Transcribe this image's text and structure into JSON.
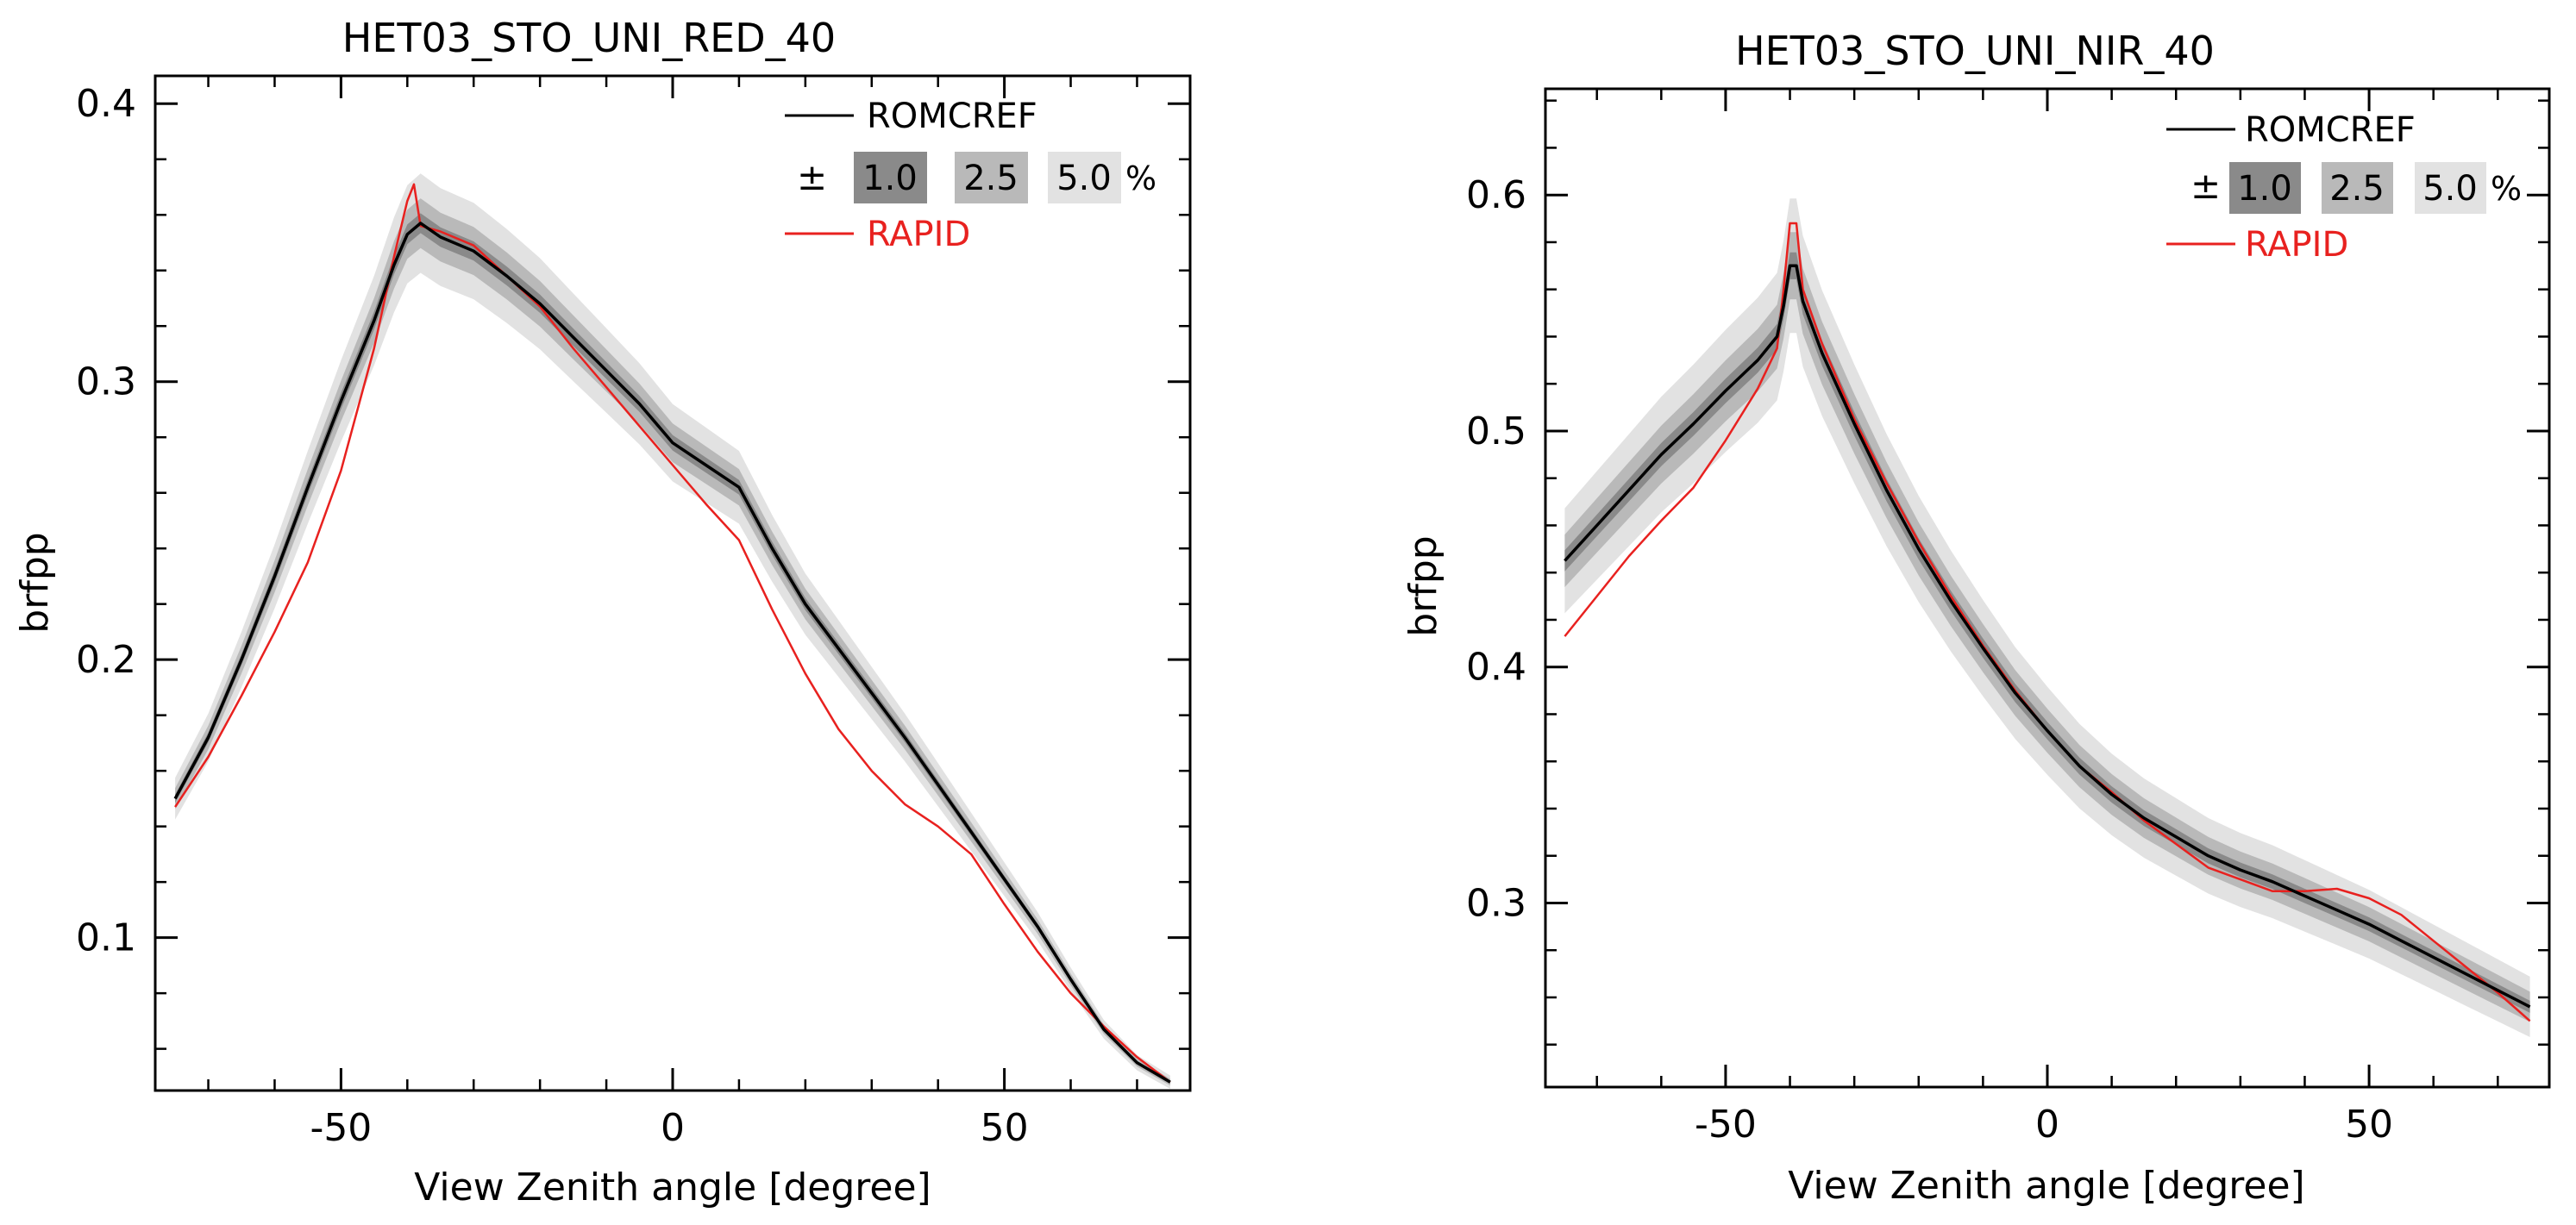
{
  "chart_data": [
    {
      "type": "line",
      "title": "HET03_STO_UNI_RED_40",
      "xlabel": "View Zenith angle [degree]",
      "ylabel": "brfpp",
      "xlim": [
        -78,
        78
      ],
      "ylim": [
        0.045,
        0.41
      ],
      "x_ticks": [
        -50,
        0,
        50
      ],
      "x_tick_labels": [
        "-50",
        "0",
        "50"
      ],
      "y_ticks": [
        0.1,
        0.2,
        0.3,
        0.4
      ],
      "y_tick_labels": [
        "0.1",
        "0.2",
        "0.3",
        "0.4"
      ],
      "grid": false,
      "legend_position": "top-right",
      "legend": {
        "ref_label": "ROMCREF",
        "pm_symbol": "±",
        "band_labels": [
          "1.0",
          "2.5",
          "5.0"
        ],
        "percent_symbol": "%",
        "model_label": "RAPID"
      },
      "series": [
        {
          "name": "ROMCREF",
          "color": "#000000",
          "x": [
            -75,
            -70,
            -65,
            -60,
            -55,
            -50,
            -45,
            -42,
            -40,
            -38,
            -35,
            -30,
            -25,
            -20,
            -15,
            -10,
            -5,
            0,
            5,
            10,
            15,
            20,
            25,
            30,
            35,
            40,
            45,
            50,
            55,
            60,
            65,
            70,
            75
          ],
          "values": [
            0.15,
            0.172,
            0.2,
            0.23,
            0.262,
            0.293,
            0.322,
            0.342,
            0.353,
            0.357,
            0.352,
            0.347,
            0.338,
            0.328,
            0.316,
            0.304,
            0.292,
            0.278,
            0.27,
            0.262,
            0.24,
            0.22,
            0.204,
            0.188,
            0.172,
            0.155,
            0.138,
            0.121,
            0.104,
            0.085,
            0.067,
            0.055,
            0.048
          ]
        },
        {
          "name": "RAPID",
          "color": "#e8211f",
          "x": [
            -75,
            -70,
            -65,
            -60,
            -55,
            -50,
            -45,
            -42,
            -40,
            -39,
            -38,
            -35,
            -30,
            -25,
            -20,
            -15,
            -10,
            -5,
            0,
            5,
            10,
            15,
            20,
            25,
            30,
            35,
            40,
            45,
            50,
            55,
            60,
            65,
            70,
            75
          ],
          "values": [
            0.147,
            0.165,
            0.187,
            0.21,
            0.235,
            0.268,
            0.312,
            0.345,
            0.365,
            0.371,
            0.356,
            0.354,
            0.349,
            0.338,
            0.327,
            0.312,
            0.298,
            0.284,
            0.27,
            0.256,
            0.243,
            0.218,
            0.195,
            0.175,
            0.16,
            0.148,
            0.14,
            0.13,
            0.112,
            0.095,
            0.08,
            0.068,
            0.057,
            0.048
          ]
        }
      ],
      "uncertainty_bands_percent": [
        1.0,
        2.5,
        5.0
      ],
      "band_colors": [
        "#8a8a8a",
        "#b9b9b9",
        "#e2e2e2"
      ]
    },
    {
      "type": "line",
      "title": "HET03_STO_UNI_NIR_40",
      "xlabel": "View Zenith angle [degree]",
      "ylabel": "brfpp",
      "xlim": [
        -78,
        78
      ],
      "ylim": [
        0.222,
        0.645
      ],
      "x_ticks": [
        -50,
        0,
        50
      ],
      "x_tick_labels": [
        "-50",
        "0",
        "50"
      ],
      "y_ticks": [
        0.3,
        0.4,
        0.5,
        0.6
      ],
      "y_tick_labels": [
        "0.3",
        "0.4",
        "0.5",
        "0.6"
      ],
      "grid": false,
      "legend_position": "top-right",
      "legend": {
        "ref_label": "ROMCREF",
        "pm_symbol": "±",
        "band_labels": [
          "1.0",
          "2.5",
          "5.0"
        ],
        "percent_symbol": "%",
        "model_label": "RAPID"
      },
      "series": [
        {
          "name": "ROMCREF",
          "color": "#000000",
          "x": [
            -75,
            -70,
            -65,
            -60,
            -55,
            -50,
            -45,
            -42,
            -41,
            -40,
            -39,
            -38,
            -35,
            -30,
            -25,
            -20,
            -15,
            -10,
            -5,
            0,
            5,
            10,
            15,
            20,
            25,
            30,
            35,
            40,
            45,
            50,
            55,
            60,
            65,
            70,
            75
          ],
          "values": [
            0.445,
            0.46,
            0.475,
            0.49,
            0.503,
            0.517,
            0.53,
            0.54,
            0.553,
            0.57,
            0.57,
            0.555,
            0.533,
            0.503,
            0.475,
            0.45,
            0.428,
            0.408,
            0.389,
            0.373,
            0.358,
            0.346,
            0.336,
            0.328,
            0.32,
            0.314,
            0.309,
            0.303,
            0.297,
            0.291,
            0.284,
            0.277,
            0.27,
            0.263,
            0.256
          ]
        },
        {
          "name": "RAPID",
          "color": "#e8211f",
          "x": [
            -75,
            -70,
            -65,
            -60,
            -55,
            -50,
            -45,
            -42,
            -41,
            -40,
            -39,
            -38,
            -35,
            -30,
            -25,
            -20,
            -15,
            -10,
            -5,
            0,
            5,
            10,
            15,
            20,
            25,
            30,
            35,
            40,
            45,
            50,
            55,
            60,
            65,
            70,
            75
          ],
          "values": [
            0.413,
            0.43,
            0.447,
            0.462,
            0.476,
            0.496,
            0.518,
            0.535,
            0.56,
            0.588,
            0.588,
            0.56,
            0.537,
            0.505,
            0.478,
            0.453,
            0.43,
            0.409,
            0.39,
            0.373,
            0.358,
            0.347,
            0.335,
            0.325,
            0.315,
            0.31,
            0.305,
            0.305,
            0.306,
            0.302,
            0.295,
            0.284,
            0.273,
            0.262,
            0.25
          ]
        }
      ],
      "uncertainty_bands_percent": [
        1.0,
        2.5,
        5.0
      ],
      "band_colors": [
        "#8a8a8a",
        "#b9b9b9",
        "#e2e2e2"
      ]
    }
  ]
}
